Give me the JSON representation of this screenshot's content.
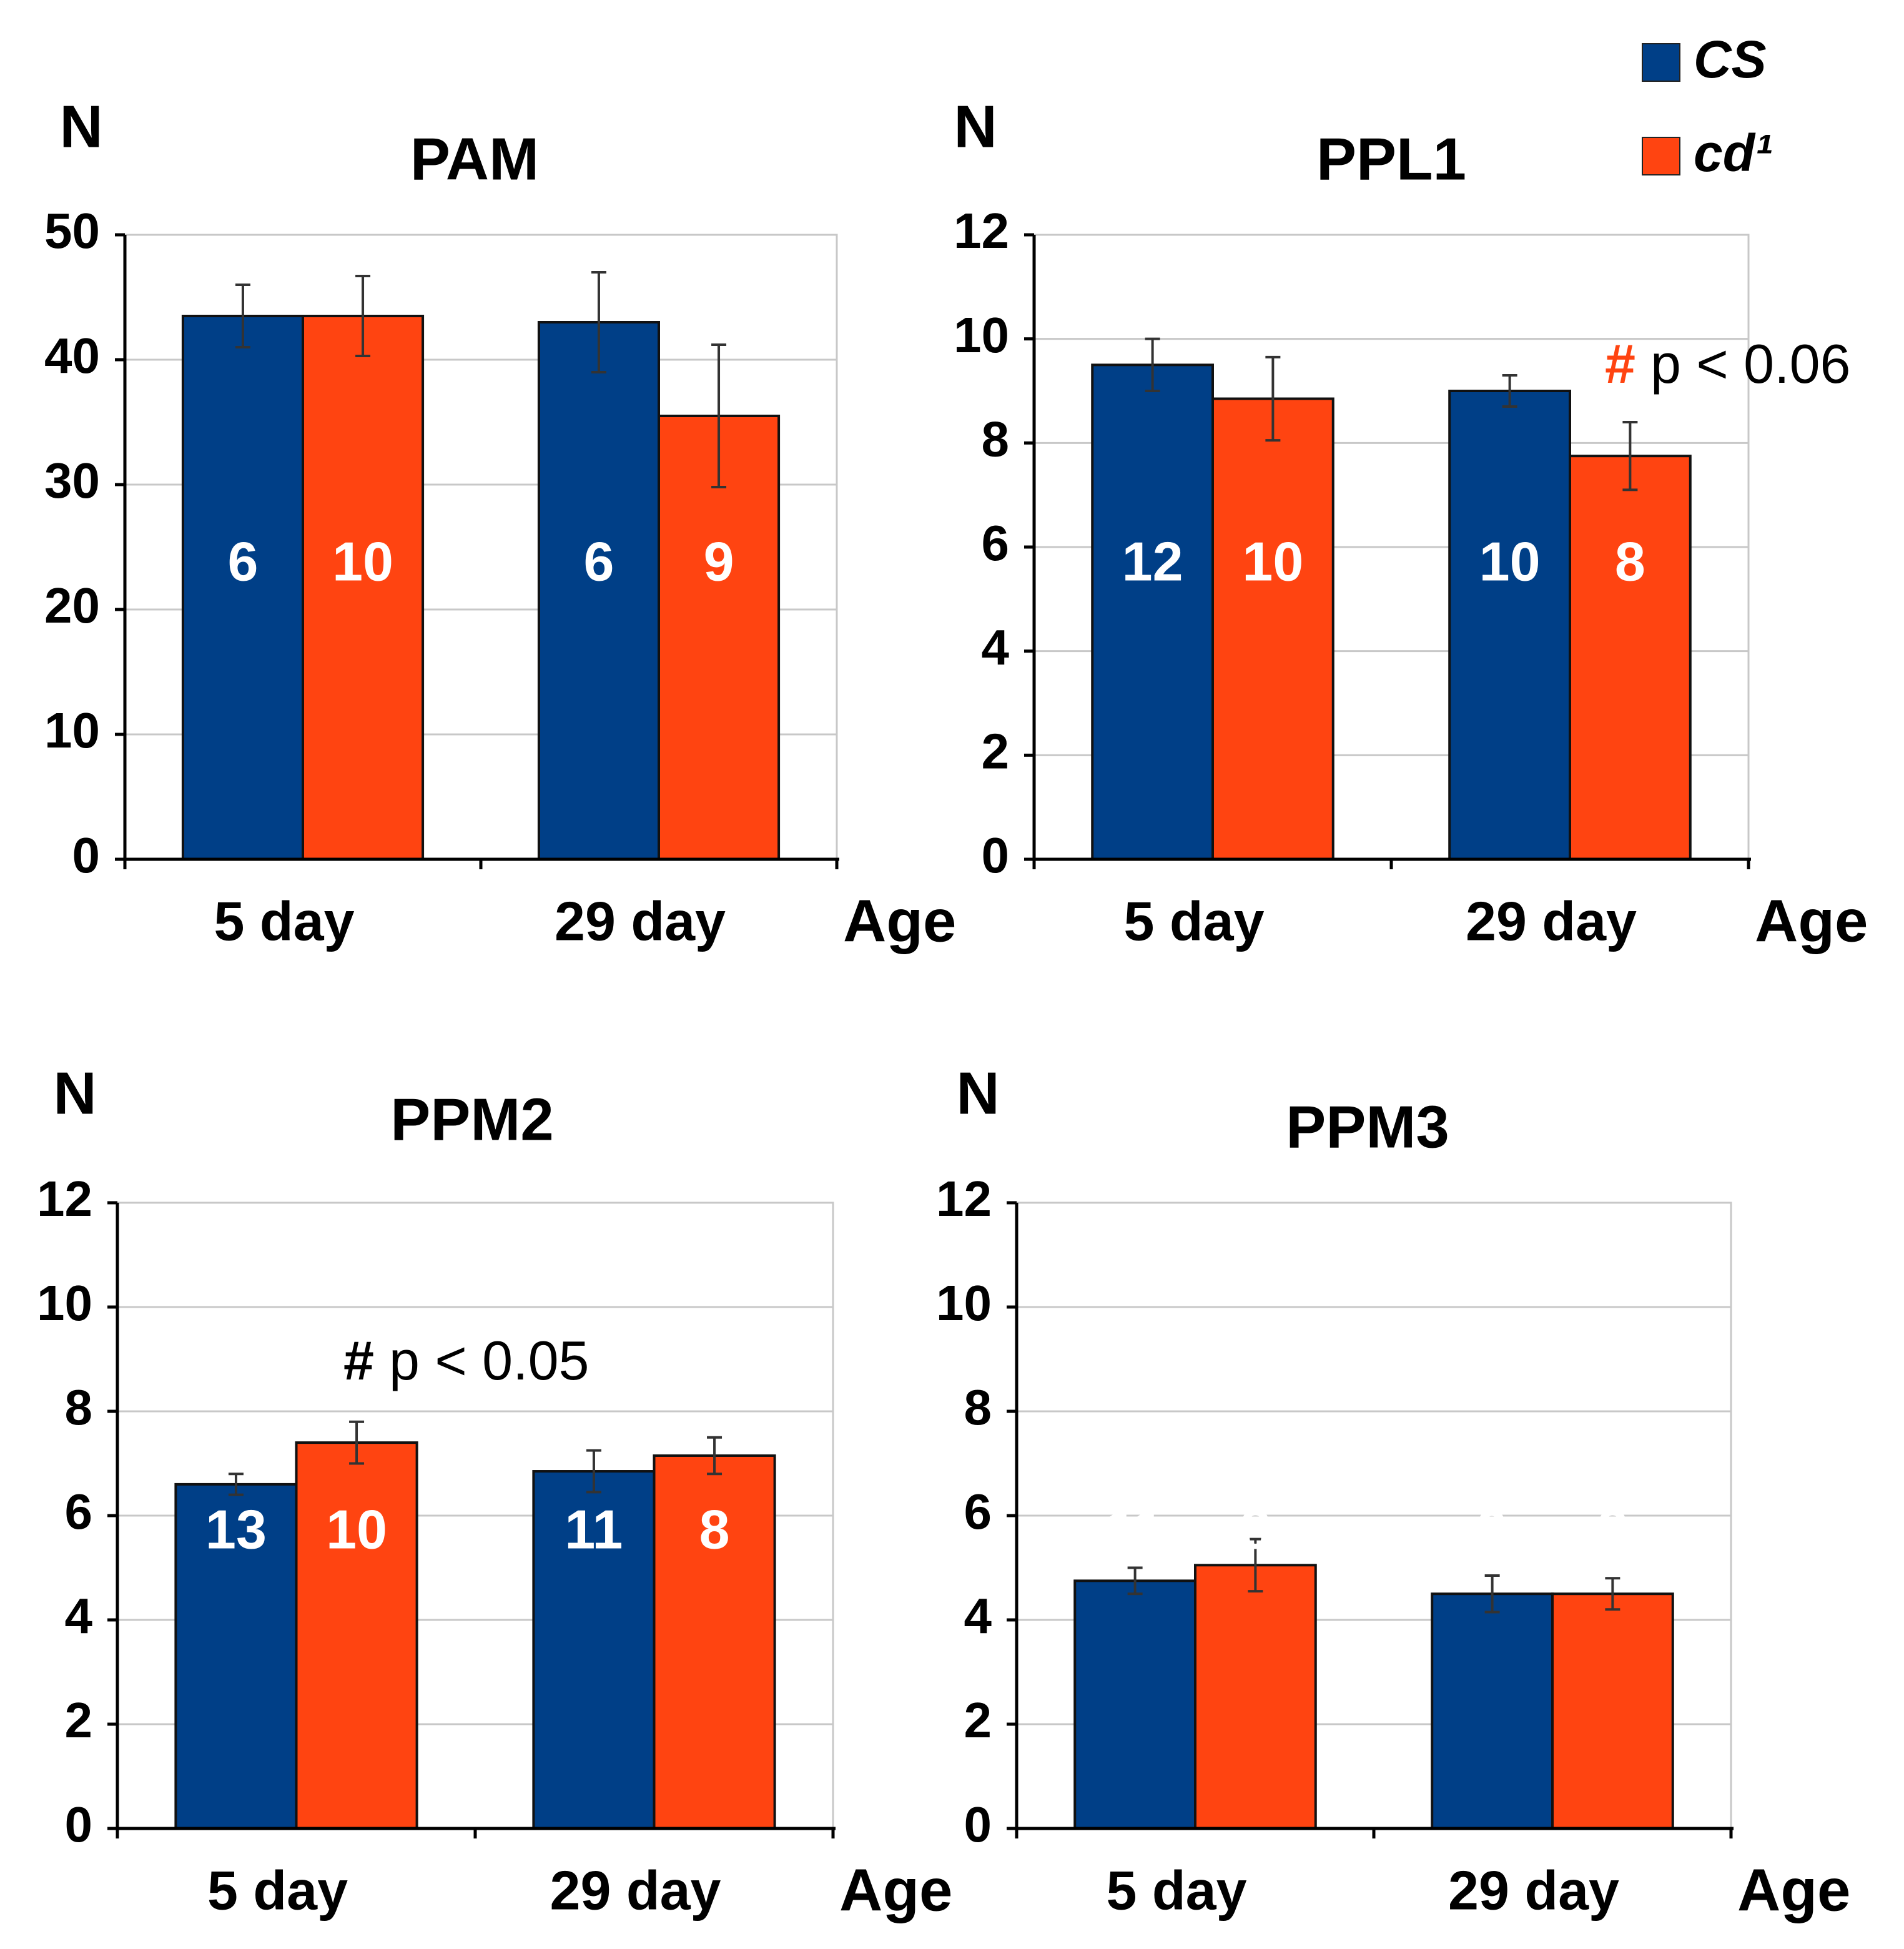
{
  "legend": [
    {
      "name": "CS",
      "color": "#003f87"
    },
    {
      "name": "cd¹",
      "color": "#ff4411"
    }
  ],
  "chart_data": [
    {
      "type": "bar",
      "title": "PAM",
      "y_label": "N",
      "x_label": "Age",
      "categories": [
        "5 day",
        "29 day"
      ],
      "series": [
        {
          "color": "#003f87",
          "values": [
            43.5,
            43
          ],
          "errors": [
            2.5,
            4
          ],
          "n": [
            6,
            6
          ]
        },
        {
          "color": "#ff4411",
          "values": [
            43.5,
            35.5
          ],
          "errors": [
            3.2,
            5.7
          ],
          "n": [
            10,
            9
          ]
        }
      ],
      "ylim": [
        0,
        50
      ],
      "yticks": [
        0,
        10,
        20,
        30,
        40,
        50
      ],
      "grid": true
    },
    {
      "type": "bar",
      "title": "PPL1",
      "y_label": "N",
      "x_label": "Age",
      "categories": [
        "5 day",
        "29 day"
      ],
      "series": [
        {
          "color": "#003f87",
          "values": [
            9.5,
            9
          ],
          "errors": [
            0.5,
            0.3
          ],
          "n": [
            12,
            10
          ]
        },
        {
          "color": "#ff4411",
          "values": [
            8.85,
            7.75
          ],
          "errors": [
            0.8,
            0.65
          ],
          "n": [
            10,
            8
          ]
        }
      ],
      "ylim": [
        0,
        12
      ],
      "yticks": [
        0,
        2,
        4,
        6,
        8,
        10,
        12
      ],
      "grid": true,
      "annotation": {
        "symbol": "#",
        "symbol_color": "#ff4411",
        "text": "p < 0.06"
      }
    },
    {
      "type": "bar",
      "title": "PPM2",
      "y_label": "N",
      "x_label": "Age",
      "categories": [
        "5 day",
        "29 day"
      ],
      "series": [
        {
          "color": "#003f87",
          "values": [
            6.6,
            6.85
          ],
          "errors": [
            0.2,
            0.4
          ],
          "n": [
            13,
            11
          ]
        },
        {
          "color": "#ff4411",
          "values": [
            7.4,
            7.15
          ],
          "errors": [
            0.4,
            0.35
          ],
          "n": [
            10,
            8
          ]
        }
      ],
      "ylim": [
        0,
        12
      ],
      "yticks": [
        0,
        2,
        4,
        6,
        8,
        10,
        12
      ],
      "grid": true,
      "annotation": {
        "symbol": "#",
        "symbol_color": "#000000",
        "text": "p < 0.05"
      }
    },
    {
      "type": "bar",
      "title": "PPM3",
      "y_label": "N",
      "x_label": "Age",
      "categories": [
        "5 day",
        "29 day"
      ],
      "series": [
        {
          "color": "#003f87",
          "values": [
            4.75,
            4.5
          ],
          "errors": [
            0.25,
            0.35
          ],
          "n": [
            11,
            9
          ]
        },
        {
          "color": "#ff4411",
          "values": [
            5.05,
            4.5
          ],
          "errors": [
            0.5,
            0.3
          ],
          "n": [
            8,
            8
          ]
        }
      ],
      "ylim": [
        0,
        12
      ],
      "yticks": [
        0,
        2,
        4,
        6,
        8,
        10,
        12
      ],
      "grid": true
    }
  ]
}
